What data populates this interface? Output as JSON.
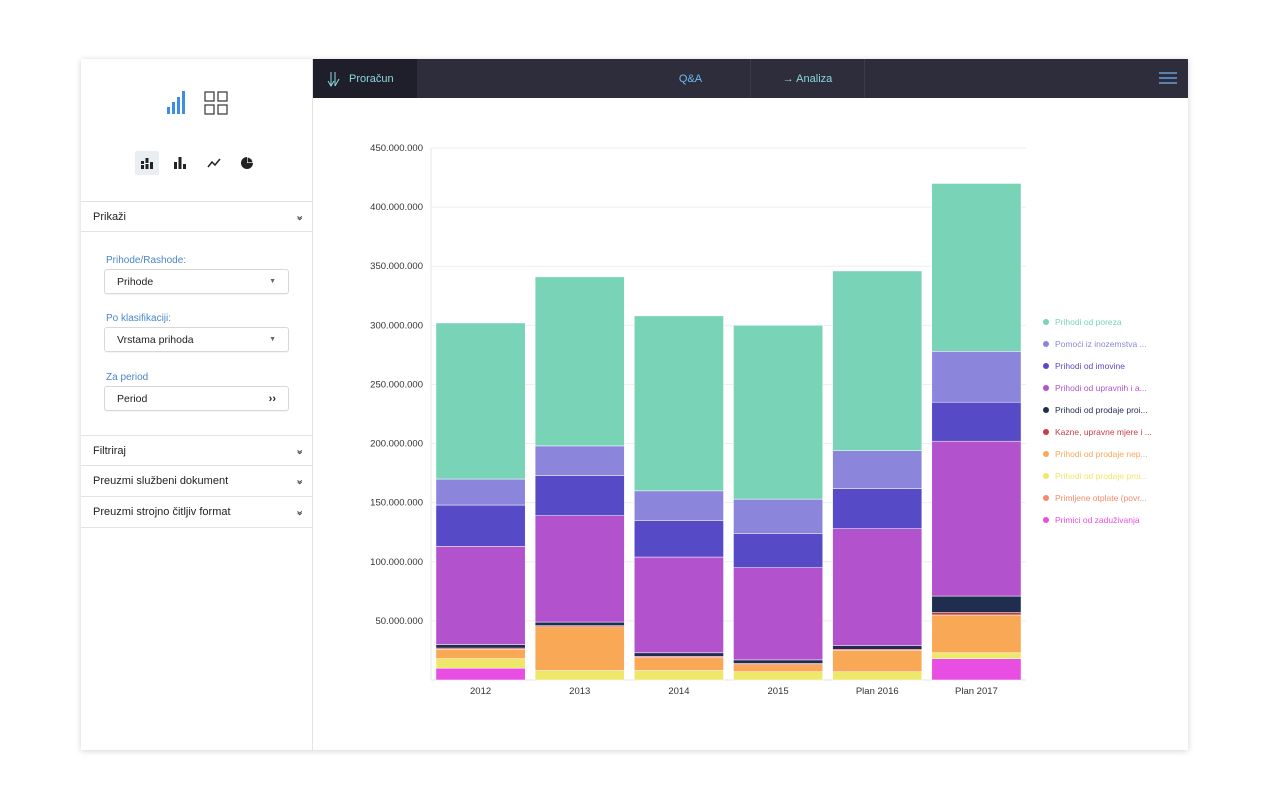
{
  "topbar": {
    "brand": "Proračun",
    "tab_qa": "Q&A",
    "tab_analysis": "→ Analiza",
    "menu_icon": "hamburger-icon"
  },
  "sidebar": {
    "view_icons": [
      "bar-signal-icon",
      "grid-icon"
    ],
    "chart_type_icons": [
      "stacked-bar-icon",
      "bar-icon",
      "line-icon",
      "pie-icon"
    ],
    "sections": {
      "show": "Prikaži",
      "filter": "Filtriraj",
      "download_official": "Preuzmi službeni dokument",
      "download_machine": "Preuzmi strojno čitljiv format"
    },
    "form": {
      "type_label": "Prihode/Rashode:",
      "type_value": "Prihode",
      "class_label": "Po klasifikaciji:",
      "class_value": "Vrstama prihoda",
      "period_label": "Za period",
      "period_value": "Period"
    }
  },
  "chart_data": {
    "type": "bar",
    "stacked": true,
    "categories": [
      "2012",
      "2013",
      "2014",
      "2015",
      "Plan 2016",
      "Plan 2017"
    ],
    "ylim": [
      0,
      450000000
    ],
    "yticks": [
      "50.000.000",
      "100.000.000",
      "150.000.000",
      "200.000.000",
      "250.000.000",
      "300.000.000",
      "350.000.000",
      "400.000.000",
      "450.000.000"
    ],
    "legend_position": "right",
    "grid": true,
    "series": [
      {
        "name": "Primici od zaduživanja",
        "color": "#e94ee2",
        "values": [
          10000000,
          0,
          0,
          0,
          0,
          18000000
        ]
      },
      {
        "name": "Primljene otplate (povr...",
        "color": "#f58a6c",
        "values": [
          0,
          0,
          0,
          0,
          0,
          0
        ]
      },
      {
        "name": "Prihodi od prodaje proi...",
        "color": "#eee86a",
        "values": [
          8000000,
          8000000,
          8000000,
          7000000,
          7000000,
          5000000
        ]
      },
      {
        "name": "Prihodi od prodaje nep...",
        "color": "#f9a955",
        "values": [
          8000000,
          37000000,
          11000000,
          6000000,
          18000000,
          32000000
        ]
      },
      {
        "name": "Kazne, upravne mjere i ...",
        "color": "#cc3b44",
        "values": [
          1000000,
          1000000,
          1000000,
          1000000,
          1000000,
          2000000
        ]
      },
      {
        "name": "Prihodi od prodaje proi...",
        "color": "#1f2d4f",
        "values": [
          3000000,
          3000000,
          3000000,
          3000000,
          3000000,
          14000000
        ]
      },
      {
        "name": "Prihodi od upravnih i a...",
        "color": "#b352cd",
        "values": [
          83000000,
          90000000,
          81000000,
          78000000,
          99000000,
          131000000
        ]
      },
      {
        "name": "Prihodi od imovine",
        "color": "#574ac6",
        "values": [
          35000000,
          34000000,
          31000000,
          29000000,
          34000000,
          33000000
        ]
      },
      {
        "name": "Pomoći iz inozemstva ...",
        "color": "#8b86dc",
        "values": [
          22000000,
          25000000,
          25000000,
          29000000,
          32000000,
          43000000
        ]
      },
      {
        "name": "Prihodi od poreza",
        "color": "#79d3b6",
        "values": [
          132000000,
          143000000,
          148000000,
          147000000,
          152000000,
          142000000
        ]
      }
    ]
  }
}
